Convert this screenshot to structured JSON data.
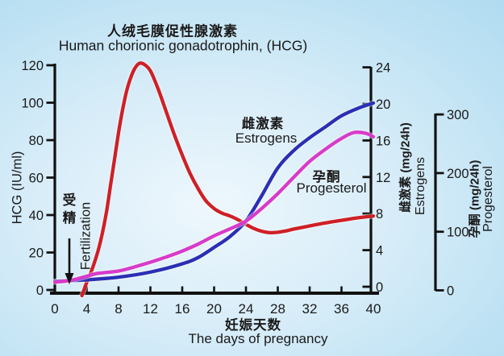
{
  "colors": {
    "background_edge": "#a6d6ee",
    "background_center": "#eef7fd",
    "axis": "#111111",
    "text": "#1a1a1a",
    "hcg_red": "#ce2026",
    "estrogens_blue": "#2b2fb4",
    "progesterol_magenta": "#d83bc9"
  },
  "chart_data": {
    "type": "line",
    "title_cn": "人绒毛膜促性腺激素",
    "title_en": "Human chorionic gonadotrophin,  (HCG)",
    "x_axis": {
      "label_cn": "妊娠天数",
      "label_en": "The days of pregnancy",
      "range": [
        0,
        40
      ],
      "ticks": [
        0,
        4,
        8,
        12,
        16,
        20,
        24,
        28,
        32,
        36,
        40
      ]
    },
    "axes": {
      "hcg": {
        "side": "left",
        "label": "HCG (IU/ml)",
        "range": [
          0,
          120
        ],
        "ticks": [
          0,
          20,
          40,
          60,
          80,
          100,
          120
        ]
      },
      "estrogens": {
        "side": "right-inner",
        "label_cn": "雌激素 (mg/24h)",
        "label_en": "Estrogens",
        "range": [
          0,
          24
        ],
        "ticks": [
          0,
          4,
          8,
          12,
          16,
          20,
          24
        ]
      },
      "progesterol": {
        "side": "right-outer",
        "label_cn": "孕酮 (mg/24h)",
        "label_en": "Progesterol",
        "range": [
          0,
          300
        ],
        "ticks": [
          0,
          100,
          200,
          300
        ]
      }
    },
    "series": [
      {
        "name": "HCG",
        "axis": "hcg",
        "unit": "IU/ml",
        "color": "#ce2026",
        "points": [
          [
            3.4,
            -3
          ],
          [
            4,
            4
          ],
          [
            4.5,
            9
          ],
          [
            5,
            15
          ],
          [
            5.5,
            22
          ],
          [
            6,
            31
          ],
          [
            6.5,
            42
          ],
          [
            7,
            56
          ],
          [
            7.5,
            70
          ],
          [
            8,
            84
          ],
          [
            8.5,
            96
          ],
          [
            9,
            106
          ],
          [
            9.5,
            113
          ],
          [
            10,
            118
          ],
          [
            10.6,
            121
          ],
          [
            11.2,
            120.5
          ],
          [
            12,
            117
          ],
          [
            13,
            107
          ],
          [
            14,
            95
          ],
          [
            15,
            83
          ],
          [
            16,
            72
          ],
          [
            17,
            62
          ],
          [
            18,
            54
          ],
          [
            19,
            47.5
          ],
          [
            20,
            43.5
          ],
          [
            21,
            41
          ],
          [
            22,
            39.5
          ],
          [
            23,
            37.5
          ],
          [
            24,
            35
          ],
          [
            25,
            32.8
          ],
          [
            26,
            31.3
          ],
          [
            27,
            30.6
          ],
          [
            28,
            30.8
          ],
          [
            29,
            31.5
          ],
          [
            30,
            32.5
          ],
          [
            32,
            34.2
          ],
          [
            34,
            35.8
          ],
          [
            36,
            37.2
          ],
          [
            38,
            38.5
          ],
          [
            40,
            39.5
          ]
        ]
      },
      {
        "name": "Estrogens",
        "axis": "estrogens",
        "unit": "mg/24h",
        "color": "#2b2fb4",
        "points": [
          [
            0,
            0.6
          ],
          [
            4,
            0.75
          ],
          [
            8,
            1.05
          ],
          [
            12,
            1.6
          ],
          [
            16,
            2.5
          ],
          [
            18,
            3.2
          ],
          [
            20,
            4.3
          ],
          [
            22,
            5.5
          ],
          [
            24,
            7.2
          ],
          [
            26,
            10
          ],
          [
            28,
            13
          ],
          [
            30,
            14.9
          ],
          [
            32,
            16.3
          ],
          [
            34,
            17.5
          ],
          [
            36,
            18.7
          ],
          [
            38,
            19.5
          ],
          [
            40,
            20.1
          ]
        ]
      },
      {
        "name": "Progesterol",
        "axis": "progesterol",
        "unit": "mg/24h",
        "color": "#d83bc9",
        "points": [
          [
            0,
            14
          ],
          [
            2,
            17
          ],
          [
            4,
            24
          ],
          [
            5,
            28
          ],
          [
            6,
            30
          ],
          [
            8,
            33
          ],
          [
            10,
            40
          ],
          [
            12,
            48
          ],
          [
            14,
            57
          ],
          [
            16,
            67
          ],
          [
            18,
            79
          ],
          [
            20,
            93
          ],
          [
            22,
            105
          ],
          [
            24,
            118
          ],
          [
            26,
            140
          ],
          [
            28,
            165
          ],
          [
            30,
            193
          ],
          [
            32,
            220
          ],
          [
            34,
            241
          ],
          [
            36,
            259
          ],
          [
            37.5,
            269
          ],
          [
            39,
            268
          ],
          [
            40,
            262
          ]
        ]
      }
    ],
    "annotations": {
      "estrogens": {
        "cn": "雌激素",
        "en": "Estrogens"
      },
      "progesterol": {
        "cn": "孕酮",
        "en": "Progesterol"
      },
      "fertilization": {
        "cn": "受精",
        "en": "Fertilization"
      }
    }
  }
}
